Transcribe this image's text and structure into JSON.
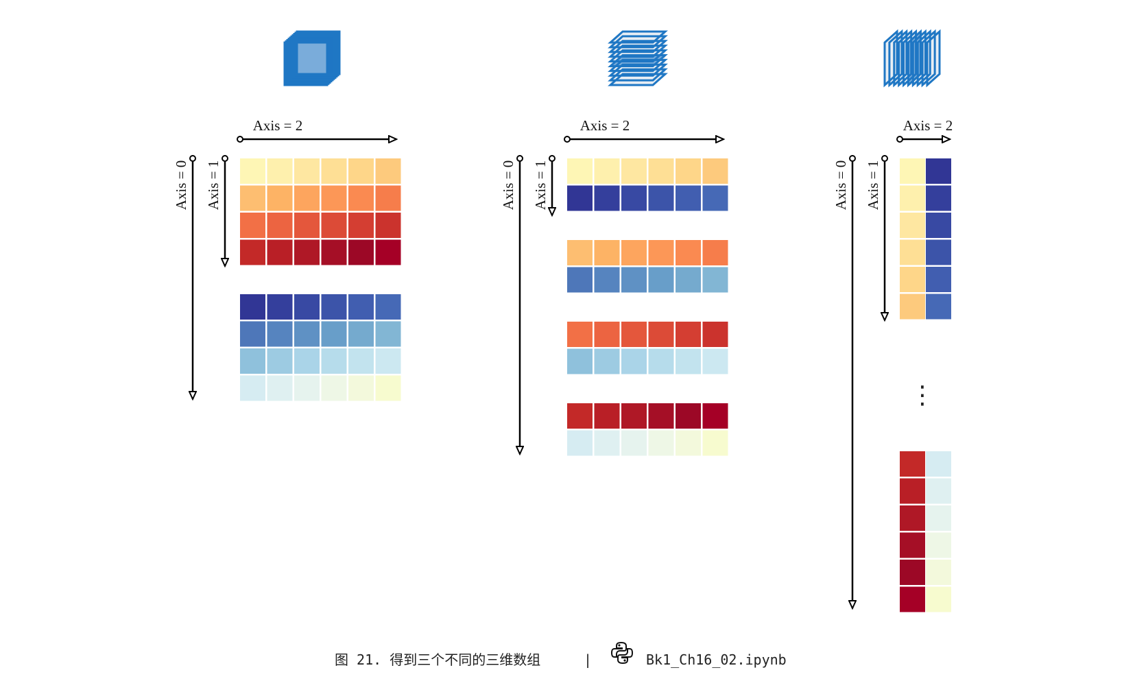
{
  "colors": {
    "warm": [
      "#fef6b5",
      "#fef0ad",
      "#fee7a1",
      "#fedf95",
      "#fed689",
      "#fdca7d",
      "#fdbe71",
      "#fdb365",
      "#fda55e",
      "#fc9757",
      "#fa8a51",
      "#f67d4b",
      "#f27046",
      "#ec6441",
      "#e4573c",
      "#dc4b37",
      "#d43e32",
      "#cb332d",
      "#c32928",
      "#b91f26",
      "#af1826",
      "#a50f26",
      "#9c0826",
      "#a50026"
    ],
    "cool": [
      "#313695",
      "#343f9c",
      "#3849a3",
      "#3c54a9",
      "#415eb0",
      "#4669b6",
      "#4e77b9",
      "#5684bf",
      "#5f91c4",
      "#689ec9",
      "#75aace",
      "#82b6d4",
      "#8fc1dc",
      "#9dcbe2",
      "#aad4e8",
      "#b6dceb",
      "#c2e3ee",
      "#cce8f1",
      "#d6ecf2",
      "#dff0f1",
      "#e6f3ee",
      "#eef7e6",
      "#f3f9dc",
      "#f7fbcf"
    ],
    "line": "#000000",
    "cube": "#1f77c4"
  },
  "panels": [
    {
      "axis2_label": "Axis = 2",
      "axis1_label": "Axis = 1",
      "axis0_label": "Axis = 0"
    },
    {
      "axis2_label": "Axis = 2",
      "axis1_label": "Axis = 1",
      "axis0_label": "Axis = 0"
    },
    {
      "axis2_label": "Axis = 2",
      "axis1_label": "Axis = 1",
      "axis0_label": "Axis = 0",
      "ellipsis": "⋮"
    }
  ],
  "caption": {
    "figure": "图 21. 得到三个不同的三维数组",
    "separator": "|",
    "file": "Bk1_Ch16_02.ipynb",
    "icon": "python-icon"
  }
}
